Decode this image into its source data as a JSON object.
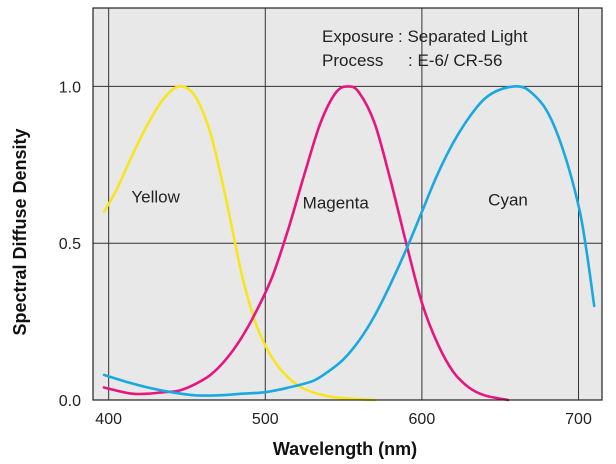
{
  "chart_data": {
    "type": "line",
    "xlabel": "Wavelength (nm)",
    "ylabel": "Spectral Diffuse Density",
    "xlim": [
      390,
      715
    ],
    "ylim": [
      0.0,
      1.25
    ],
    "x_ticks": [
      400,
      500,
      600,
      700
    ],
    "x_tick_labels": [
      "400",
      "500",
      "600",
      "700"
    ],
    "y_ticks": [
      0.0,
      0.5,
      1.0
    ],
    "y_tick_labels": [
      "0.0",
      "0.5",
      "1.0"
    ],
    "grid": true,
    "background": "#e8e8e8",
    "annotation": {
      "exposure_label": "Exposure",
      "exposure_value": ": Separated Light",
      "process_label": "Process",
      "process_value": ": E-6/ CR-56"
    },
    "series": [
      {
        "name": "Yellow",
        "color": "#f7e61e",
        "label_at": [
          430,
          0.63
        ],
        "points": [
          [
            397,
            0.6
          ],
          [
            405,
            0.67
          ],
          [
            415,
            0.78
          ],
          [
            425,
            0.88
          ],
          [
            435,
            0.96
          ],
          [
            445,
            1.0
          ],
          [
            455,
            0.97
          ],
          [
            465,
            0.85
          ],
          [
            475,
            0.64
          ],
          [
            485,
            0.4
          ],
          [
            495,
            0.23
          ],
          [
            505,
            0.13
          ],
          [
            515,
            0.07
          ],
          [
            525,
            0.035
          ],
          [
            540,
            0.012
          ],
          [
            555,
            0.004
          ],
          [
            570,
            0.0
          ]
        ]
      },
      {
        "name": "Magenta",
        "color": "#e6157f",
        "label_at": [
          545,
          0.61
        ],
        "points": [
          [
            397,
            0.04
          ],
          [
            405,
            0.03
          ],
          [
            415,
            0.02
          ],
          [
            425,
            0.02
          ],
          [
            435,
            0.025
          ],
          [
            445,
            0.03
          ],
          [
            455,
            0.05
          ],
          [
            465,
            0.08
          ],
          [
            475,
            0.13
          ],
          [
            485,
            0.2
          ],
          [
            495,
            0.29
          ],
          [
            505,
            0.4
          ],
          [
            515,
            0.55
          ],
          [
            525,
            0.72
          ],
          [
            535,
            0.88
          ],
          [
            545,
            0.98
          ],
          [
            553,
            1.0
          ],
          [
            560,
            0.98
          ],
          [
            570,
            0.88
          ],
          [
            580,
            0.7
          ],
          [
            590,
            0.5
          ],
          [
            600,
            0.31
          ],
          [
            610,
            0.18
          ],
          [
            620,
            0.09
          ],
          [
            630,
            0.04
          ],
          [
            640,
            0.015
          ],
          [
            655,
            0.0
          ]
        ]
      },
      {
        "name": "Cyan",
        "color": "#19a8e0",
        "label_at": [
          655,
          0.62
        ],
        "points": [
          [
            397,
            0.08
          ],
          [
            410,
            0.06
          ],
          [
            425,
            0.04
          ],
          [
            440,
            0.025
          ],
          [
            455,
            0.015
          ],
          [
            470,
            0.015
          ],
          [
            485,
            0.02
          ],
          [
            500,
            0.025
          ],
          [
            515,
            0.04
          ],
          [
            530,
            0.06
          ],
          [
            540,
            0.09
          ],
          [
            550,
            0.13
          ],
          [
            560,
            0.19
          ],
          [
            570,
            0.27
          ],
          [
            580,
            0.37
          ],
          [
            590,
            0.48
          ],
          [
            600,
            0.6
          ],
          [
            610,
            0.72
          ],
          [
            620,
            0.82
          ],
          [
            630,
            0.9
          ],
          [
            640,
            0.96
          ],
          [
            650,
            0.99
          ],
          [
            662,
            1.0
          ],
          [
            670,
            0.98
          ],
          [
            680,
            0.92
          ],
          [
            690,
            0.8
          ],
          [
            700,
            0.62
          ],
          [
            705,
            0.48
          ],
          [
            710,
            0.3
          ]
        ]
      }
    ]
  }
}
